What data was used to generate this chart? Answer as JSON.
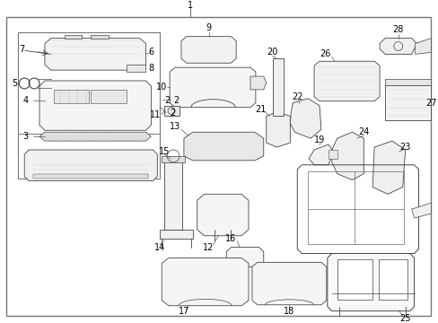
{
  "bg_color": "#ffffff",
  "border_color": "#777777",
  "line_color": "#444444",
  "figsize": [
    4.89,
    3.6
  ],
  "dpi": 100,
  "label_fontsize": 7.0,
  "label_color": "#000000"
}
